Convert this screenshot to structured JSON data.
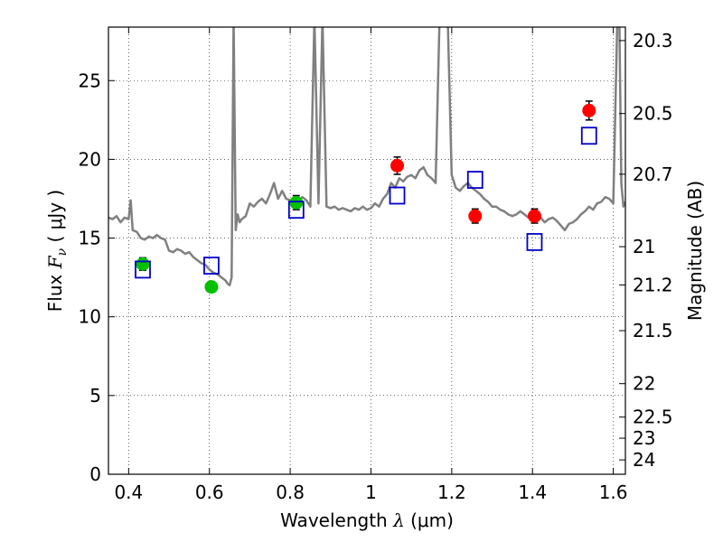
{
  "chart_data": {
    "type": "scatter",
    "xlabel": {
      "prefix": "Wavelength  ",
      "symbol": "λ",
      "suffix": " (μm)"
    },
    "ylabel": {
      "prefix": "Flux  ",
      "symbol": "F",
      "subscript": "ν",
      "suffix": "  (  μJy )"
    },
    "ylabel_right": "Magnitude (AB)",
    "xlim": [
      0.35,
      1.63
    ],
    "ylim": [
      0,
      28.4
    ],
    "x_ticks": [
      {
        "value": 0.4,
        "label": "0.4"
      },
      {
        "value": 0.6,
        "label": "0.6"
      },
      {
        "value": 0.8,
        "label": "0.8"
      },
      {
        "value": 1.0,
        "label": "1"
      },
      {
        "value": 1.2,
        "label": "1.2"
      },
      {
        "value": 1.4,
        "label": "1.4"
      },
      {
        "value": 1.6,
        "label": "1.6"
      }
    ],
    "y_ticks": [
      {
        "value": 0,
        "label": "0"
      },
      {
        "value": 5,
        "label": "5"
      },
      {
        "value": 10,
        "label": "10"
      },
      {
        "value": 15,
        "label": "15"
      },
      {
        "value": 20,
        "label": "20"
      },
      {
        "value": 25,
        "label": "25"
      }
    ],
    "right_ticks": [
      {
        "value": 20.3,
        "label": "20.3"
      },
      {
        "value": 20.5,
        "label": "20.5"
      },
      {
        "value": 20.7,
        "label": "20.7"
      },
      {
        "value": 21,
        "label": "21"
      },
      {
        "value": 21.2,
        "label": "21.2"
      },
      {
        "value": 21.5,
        "label": "21.5"
      },
      {
        "value": 22,
        "label": "22"
      },
      {
        "value": 22.5,
        "label": "22.5"
      },
      {
        "value": 23,
        "label": "23"
      },
      {
        "value": 24,
        "label": "24"
      }
    ],
    "grid": true,
    "series": [
      {
        "kind": "line",
        "color": "#808080",
        "x": [
          0.35,
          0.36,
          0.37,
          0.38,
          0.39,
          0.4,
          0.405,
          0.41,
          0.42,
          0.43,
          0.44,
          0.45,
          0.46,
          0.47,
          0.48,
          0.49,
          0.5,
          0.51,
          0.52,
          0.53,
          0.54,
          0.55,
          0.56,
          0.57,
          0.58,
          0.59,
          0.6,
          0.61,
          0.62,
          0.63,
          0.64,
          0.645,
          0.65,
          0.655,
          0.66,
          0.665,
          0.67,
          0.675,
          0.68,
          0.69,
          0.7,
          0.71,
          0.72,
          0.73,
          0.74,
          0.75,
          0.76,
          0.77,
          0.78,
          0.79,
          0.8,
          0.81,
          0.82,
          0.83,
          0.84,
          0.85,
          0.86,
          0.87,
          0.88,
          0.89,
          0.9,
          0.91,
          0.92,
          0.93,
          0.94,
          0.95,
          0.96,
          0.97,
          0.98,
          0.99,
          1.0,
          1.01,
          1.02,
          1.03,
          1.04,
          1.05,
          1.06,
          1.07,
          1.08,
          1.09,
          1.1,
          1.11,
          1.12,
          1.13,
          1.14,
          1.15,
          1.16,
          1.17,
          1.18,
          1.19,
          1.2,
          1.21,
          1.22,
          1.23,
          1.24,
          1.25,
          1.26,
          1.27,
          1.28,
          1.29,
          1.3,
          1.31,
          1.32,
          1.33,
          1.34,
          1.35,
          1.36,
          1.37,
          1.38,
          1.39,
          1.4,
          1.41,
          1.42,
          1.43,
          1.44,
          1.45,
          1.46,
          1.47,
          1.48,
          1.49,
          1.5,
          1.51,
          1.52,
          1.53,
          1.54,
          1.55,
          1.56,
          1.57,
          1.58,
          1.59,
          1.6,
          1.61,
          1.615,
          1.62,
          1.625,
          1.63
        ],
        "values": [
          16.3,
          16.2,
          16.4,
          16.0,
          16.3,
          16.2,
          17.4,
          15.5,
          15.4,
          15.0,
          14.9,
          15.1,
          15.0,
          15.2,
          15.0,
          14.9,
          14.2,
          14.1,
          14.3,
          14.2,
          14.0,
          14.1,
          13.8,
          13.6,
          13.4,
          13.3,
          13.0,
          12.8,
          12.7,
          12.5,
          12.3,
          12.1,
          12.0,
          12.5,
          29.0,
          15.5,
          16.5,
          16.0,
          16.2,
          16.4,
          17.2,
          17.0,
          17.3,
          17.5,
          17.2,
          17.8,
          18.5,
          17.5,
          18.0,
          17.5,
          17.4,
          17.2,
          17.3,
          17.6,
          17.4,
          17.0,
          29.0,
          17.2,
          29.0,
          17.0,
          16.9,
          17.0,
          16.8,
          16.9,
          16.8,
          16.7,
          16.9,
          16.8,
          17.0,
          16.8,
          16.9,
          17.2,
          17.0,
          17.5,
          17.8,
          18.5,
          18.2,
          18.8,
          18.6,
          18.9,
          19.0,
          18.8,
          19.3,
          19.5,
          19.0,
          18.8,
          18.5,
          29.0,
          29.0,
          29.0,
          19.0,
          18.2,
          18.0,
          18.3,
          18.5,
          18.2,
          18.0,
          17.8,
          17.5,
          17.3,
          17.0,
          17.0,
          16.8,
          16.7,
          16.5,
          16.4,
          16.5,
          16.7,
          16.5,
          16.3,
          16.3,
          16.5,
          16.3,
          16.0,
          16.2,
          16.3,
          16.1,
          15.8,
          15.5,
          15.9,
          16.0,
          16.2,
          16.5,
          16.7,
          17.0,
          16.8,
          17.2,
          17.3,
          17.6,
          17.5,
          17.2,
          29.0,
          29.0,
          18.5,
          17.0,
          17.3
        ]
      },
      {
        "kind": "marker",
        "shape": "circle",
        "color": "#00c000",
        "points": [
          {
            "x": 0.435,
            "y": 13.35,
            "err": 0.4
          },
          {
            "x": 0.605,
            "y": 11.9,
            "err": 0.3
          },
          {
            "x": 0.815,
            "y": 17.25,
            "err": 0.45
          }
        ]
      },
      {
        "kind": "marker",
        "shape": "circle",
        "color": "#ff0000",
        "points": [
          {
            "x": 1.065,
            "y": 19.6,
            "err": 0.55
          },
          {
            "x": 1.258,
            "y": 16.4,
            "err": 0.45
          },
          {
            "x": 1.405,
            "y": 16.4,
            "err": 0.45
          },
          {
            "x": 1.54,
            "y": 23.1,
            "err": 0.6
          }
        ]
      },
      {
        "kind": "marker",
        "shape": "open-square",
        "color": "#0000cc",
        "points": [
          {
            "x": 0.435,
            "y": 13.0
          },
          {
            "x": 0.605,
            "y": 13.25
          },
          {
            "x": 0.815,
            "y": 16.8
          },
          {
            "x": 1.065,
            "y": 17.7
          },
          {
            "x": 1.258,
            "y": 18.7
          },
          {
            "x": 1.405,
            "y": 14.75
          },
          {
            "x": 1.54,
            "y": 21.5
          }
        ]
      }
    ]
  }
}
